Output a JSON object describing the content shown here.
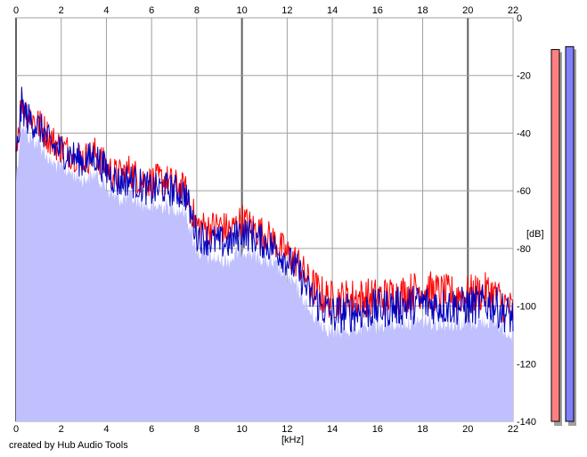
{
  "chart_data": {
    "type": "area",
    "title": "",
    "xlabel": "[kHz]",
    "ylabel": "[dB]",
    "xlim": [
      0,
      22
    ],
    "ylim": [
      -140,
      0
    ],
    "x_ticks": [
      "0",
      "2",
      "4",
      "6",
      "8",
      "10",
      "12",
      "14",
      "16",
      "18",
      "20",
      "22"
    ],
    "y_ticks": [
      "0",
      "-20",
      "-40",
      "-60",
      "-80",
      "-100",
      "-120",
      "-140"
    ],
    "grid": true,
    "fill_color": "#c0c0ff",
    "series": [
      {
        "color": "#ff0000",
        "x": [
          0,
          0.25,
          0.5,
          0.75,
          1,
          1.25,
          1.5,
          2,
          2.5,
          3,
          3.5,
          4,
          4.5,
          5,
          5.5,
          6,
          6.5,
          7,
          7.5,
          7.8,
          8,
          8.5,
          9,
          9.5,
          10,
          10.5,
          11,
          11.5,
          12,
          12.5,
          13,
          13.5,
          14,
          15,
          16,
          17,
          18,
          19,
          20,
          21,
          22
        ],
        "y": [
          -45,
          -28,
          -33,
          -35,
          -37,
          -39,
          -42,
          -45,
          -47,
          -49,
          -47,
          -52,
          -55,
          -53,
          -56,
          -57,
          -56,
          -58,
          -60,
          -67,
          -72,
          -73,
          -72,
          -74,
          -70,
          -73,
          -75,
          -78,
          -82,
          -85,
          -92,
          -96,
          -98,
          -97,
          -97,
          -96,
          -94,
          -96,
          -96,
          -95,
          -102
        ]
      },
      {
        "color": "#0000c0",
        "x": [
          0,
          0.25,
          0.5,
          0.75,
          1,
          1.25,
          1.5,
          2,
          2.5,
          3,
          3.5,
          4,
          4.5,
          5,
          5.5,
          6,
          6.5,
          7,
          7.5,
          7.8,
          8,
          8.5,
          9,
          9.5,
          10,
          10.5,
          11,
          11.5,
          12,
          12.5,
          13,
          13.5,
          14,
          15,
          16,
          17,
          18,
          19,
          20,
          21,
          22
        ],
        "y": [
          -50,
          -30,
          -35,
          -36,
          -38,
          -40,
          -44,
          -46,
          -48,
          -50,
          -48,
          -53,
          -57,
          -56,
          -58,
          -60,
          -59,
          -60,
          -61,
          -70,
          -75,
          -77,
          -78,
          -78,
          -74,
          -76,
          -78,
          -80,
          -84,
          -88,
          -96,
          -100,
          -103,
          -102,
          -101,
          -100,
          -99,
          -100,
          -100,
          -99,
          -104
        ]
      }
    ],
    "meters": [
      {
        "color": "#ff8080",
        "level_db": -11
      },
      {
        "color": "#8080ff",
        "level_db": -10
      }
    ]
  },
  "axis": {
    "x_unit": "[kHz]",
    "y_unit": "[dB]"
  },
  "credit": "created by Hub Audio Tools"
}
